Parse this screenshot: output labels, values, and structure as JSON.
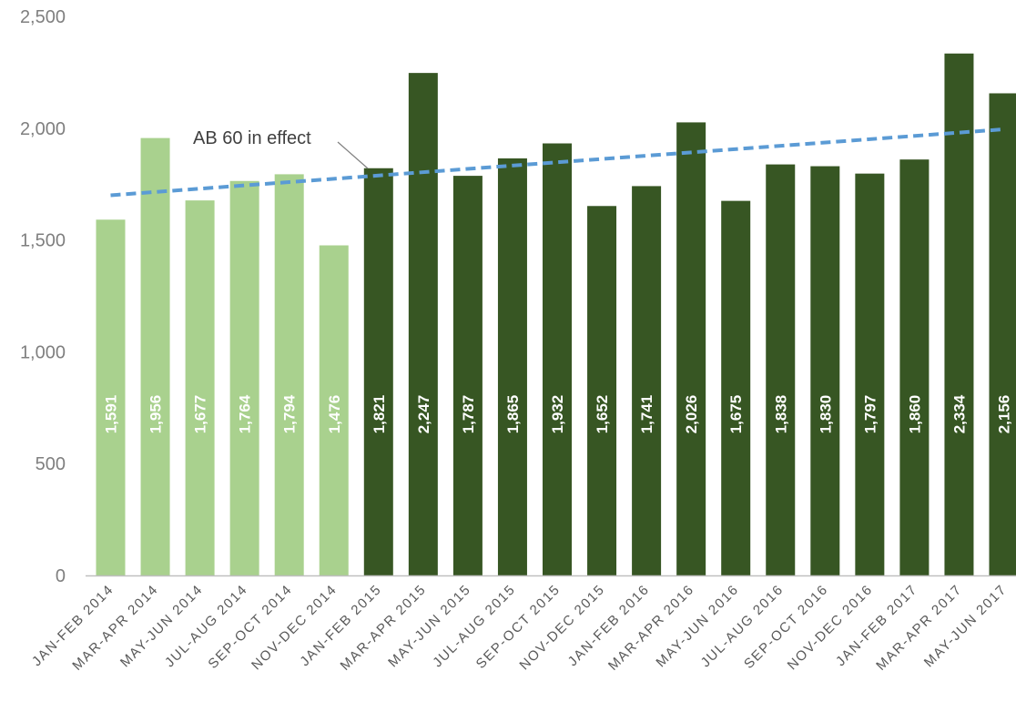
{
  "chart_data": {
    "type": "bar",
    "title": "",
    "xlabel": "",
    "ylabel": "",
    "ylim": [
      0,
      2500
    ],
    "yticks": [
      0,
      500,
      1000,
      1500,
      2000,
      2500
    ],
    "ytick_labels": [
      "0",
      "500",
      "1,000",
      "1,500",
      "2,000",
      "2,500"
    ],
    "categories": [
      "JAN-FEB 2014",
      "MAR-APR 2014",
      "MAY-JUN 2014",
      "JUL-AUG 2014",
      "SEP-OCT 2014",
      "NOV-DEC 2014",
      "JAN-FEB 2015",
      "MAR-APR 2015",
      "MAY-JUN 2015",
      "JUL-AUG 2015",
      "SEP-OCT 2015",
      "NOV-DEC 2015",
      "JAN-FEB 2016",
      "MAR-APR 2016",
      "MAY-JUN 2016",
      "JUL-AUG 2016",
      "SEP-OCT 2016",
      "NOV-DEC 2016",
      "JAN-FEB 2017",
      "MAR-APR 2017",
      "MAY-JUN 2017"
    ],
    "values": [
      1591,
      1956,
      1677,
      1764,
      1794,
      1476,
      1821,
      2247,
      1787,
      1865,
      1932,
      1652,
      1741,
      2026,
      1675,
      1838,
      1830,
      1797,
      1860,
      2334,
      2156
    ],
    "value_labels": [
      "1,591",
      "1,956",
      "1,677",
      "1,764",
      "1,794",
      "1,476",
      "1,821",
      "2,247",
      "1,787",
      "1,865",
      "1,932",
      "1,652",
      "1,741",
      "2,026",
      "1,675",
      "1,838",
      "1,830",
      "1,797",
      "1,860",
      "2,334",
      "2,156"
    ],
    "colors": {
      "before": "#a9d18e",
      "after": "#375623",
      "trendline": "#5b9bd5",
      "axis": "#bfbfbf"
    },
    "before_count": 6,
    "trendline": {
      "style": "dashed",
      "start_value": 1700,
      "end_value": 1995
    },
    "annotation": {
      "text": "AB 60 in effect",
      "points_to": "JAN-FEB 2015"
    },
    "grid": false,
    "legend": "none"
  }
}
